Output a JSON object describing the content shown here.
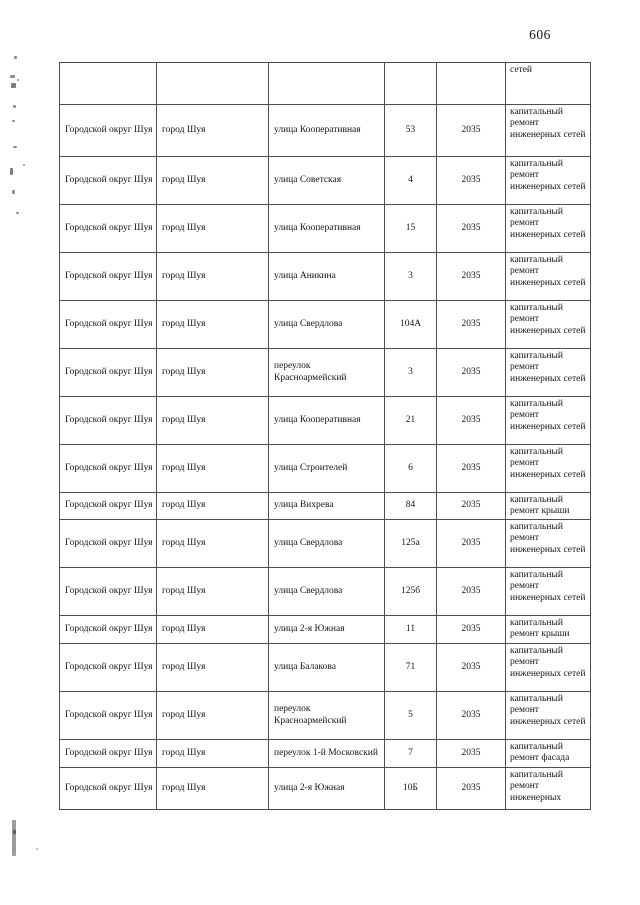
{
  "page_number": "606",
  "table": {
    "rows": [
      {
        "district": "",
        "city": "",
        "street": "",
        "house": "",
        "year": "",
        "work": "сетей",
        "partial": true
      },
      {
        "district": "Городской округ Шуя",
        "city": "город Шуя",
        "street": "улица Кооперативная",
        "house": "53",
        "year": "2035",
        "work": "капитальный ремонт инженерных сетей"
      },
      {
        "district": "Городской округ Шуя",
        "city": "город Шуя",
        "street": "улица Советская",
        "house": "4",
        "year": "2035",
        "work": "капитальный ремонт инженерных сетей"
      },
      {
        "district": "Городской округ Шуя",
        "city": "город Шуя",
        "street": "улица Кооперативная",
        "house": "15",
        "year": "2035",
        "work": "капитальный ремонт инженерных сетей"
      },
      {
        "district": "Городской округ Шуя",
        "city": "город Шуя",
        "street": "улица Аникина",
        "house": "3",
        "year": "2035",
        "work": "капитальный ремонт инженерных сетей"
      },
      {
        "district": "Городской округ Шуя",
        "city": "город Шуя",
        "street": "улица Свердлова",
        "house": "104А",
        "year": "2035",
        "work": "капитальный ремонт инженерных сетей"
      },
      {
        "district": "Городской округ Шуя",
        "city": "город Шуя",
        "street": "переулок Красноармейский",
        "house": "3",
        "year": "2035",
        "work": "капитальный ремонт инженерных сетей"
      },
      {
        "district": "Городской округ Шуя",
        "city": "город Шуя",
        "street": "улица Кооперативная",
        "house": "21",
        "year": "2035",
        "work": "капитальный ремонт инженерных сетей"
      },
      {
        "district": "Городской округ Шуя",
        "city": "город Шуя",
        "street": "улица Строителей",
        "house": "6",
        "year": "2035",
        "work": "капитальный ремонт инженерных сетей"
      },
      {
        "district": "Городской округ Шуя",
        "city": "город Шуя",
        "street": "улица Вихрева",
        "house": "84",
        "year": "2035",
        "work": "капитальный ремонт крыши"
      },
      {
        "district": "Городской округ Шуя",
        "city": "город Шуя",
        "street": "улица Свердлова",
        "house": "125а",
        "year": "2035",
        "work": "капитальный ремонт инженерных сетей"
      },
      {
        "district": "Городской округ Шуя",
        "city": "город Шуя",
        "street": "улица Свердлова",
        "house": "125б",
        "year": "2035",
        "work": "капитальный ремонт инженерных сетей"
      },
      {
        "district": "Городской округ Шуя",
        "city": "город Шуя",
        "street": "улица 2-я Южная",
        "house": "11",
        "year": "2035",
        "work": "капитальный ремонт крыши"
      },
      {
        "district": "Городской округ Шуя",
        "city": "город Шуя",
        "street": "улица Балакова",
        "house": "71",
        "year": "2035",
        "work": "капитальный ремонт инженерных сетей"
      },
      {
        "district": "Городской округ Шуя",
        "city": "город Шуя",
        "street": "переулок Красноармейский",
        "house": "5",
        "year": "2035",
        "work": "капитальный ремонт инженерных сетей"
      },
      {
        "district": "Городской округ Шуя",
        "city": "город Шуя",
        "street": "переулок 1-й Московский",
        "house": "7",
        "year": "2035",
        "work": "капитальный ремонт фасада"
      },
      {
        "district": "Городской округ Шуя",
        "city": "город Шуя",
        "street": "улица 2-я Южная",
        "house": "10Б",
        "year": "2035",
        "work": "капитальный ремонт инженерных"
      }
    ]
  }
}
